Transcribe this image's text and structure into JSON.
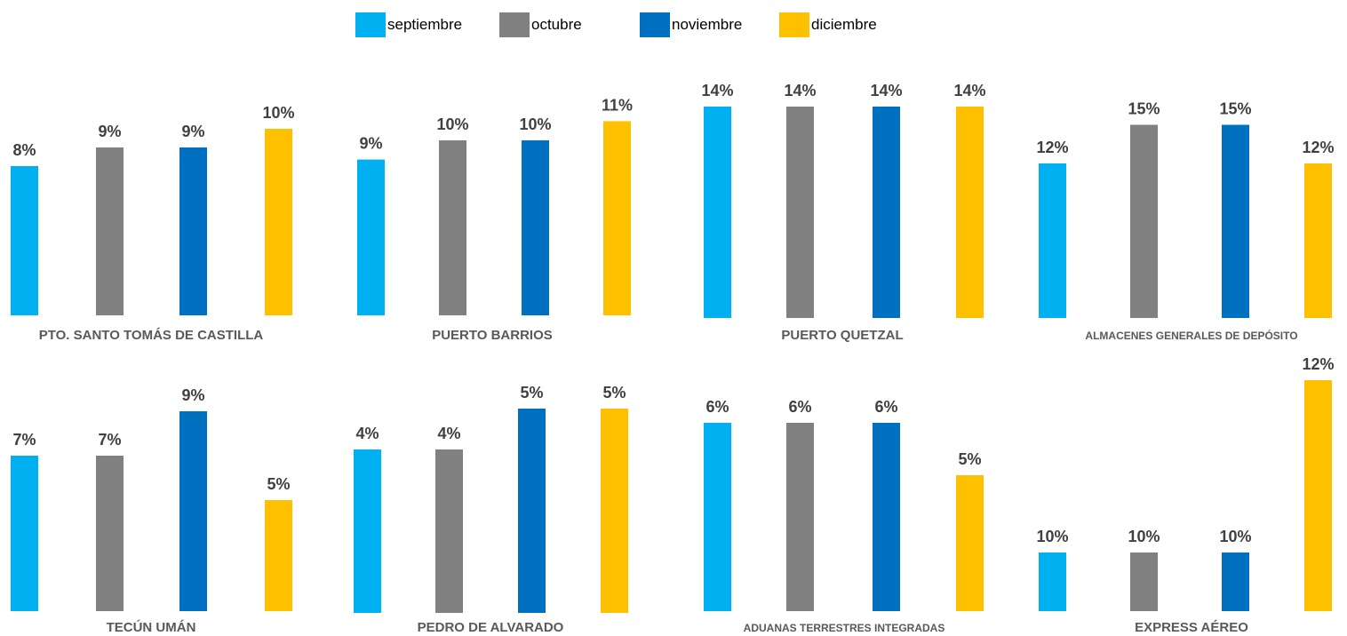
{
  "legend": [
    {
      "label": "septiembre",
      "color": "#00B0F0"
    },
    {
      "label": "octubre",
      "color": "#808080"
    },
    {
      "label": "noviembre",
      "color": "#0070C0"
    },
    {
      "label": "diciembre",
      "color": "#FFC000"
    }
  ],
  "chart_data": {
    "type": "bar",
    "series": [
      {
        "name": "septiembre",
        "color": "#00B0F0"
      },
      {
        "name": "octubre",
        "color": "#808080"
      },
      {
        "name": "noviembre",
        "color": "#0070C0"
      },
      {
        "name": "diciembre",
        "color": "#FFC000"
      }
    ],
    "groups": [
      {
        "category": "PTO. SANTO TOMÁS DE CASTILLA",
        "values": [
          8,
          9,
          9,
          10
        ],
        "labels": [
          "8%",
          "9%",
          "9%",
          "10%"
        ]
      },
      {
        "category": "PUERTO BARRIOS",
        "values": [
          9,
          10,
          10,
          11
        ],
        "labels": [
          "9%",
          "10%",
          "10%",
          "11%"
        ]
      },
      {
        "category": "PUERTO QUETZAL",
        "values": [
          14,
          14,
          14,
          14
        ],
        "labels": [
          "14%",
          "14%",
          "14%",
          "14%"
        ]
      },
      {
        "category": "ALMACENES GENERALES DE DEPÓSITO",
        "values": [
          12,
          15,
          15,
          12
        ],
        "labels": [
          "12%",
          "15%",
          "15%",
          "12%"
        ]
      },
      {
        "category": "TECÚN UMÁN",
        "values": [
          7,
          7,
          9,
          5
        ],
        "labels": [
          "7%",
          "7%",
          "9%",
          "5%"
        ]
      },
      {
        "category": "PEDRO DE ALVARADO",
        "values": [
          4,
          4,
          5,
          5
        ],
        "labels": [
          "4%",
          "4%",
          "5%",
          "5%"
        ]
      },
      {
        "category": "ADUANAS TERRESTRES INTEGRADAS",
        "values": [
          6,
          6,
          6,
          5
        ],
        "labels": [
          "6%",
          "6%",
          "6%",
          "5%"
        ]
      },
      {
        "category": "EXPRESS AÉREO",
        "values": [
          10,
          10,
          10,
          12
        ],
        "labels": [
          "10%",
          "10%",
          "10%",
          "12%"
        ]
      }
    ]
  }
}
